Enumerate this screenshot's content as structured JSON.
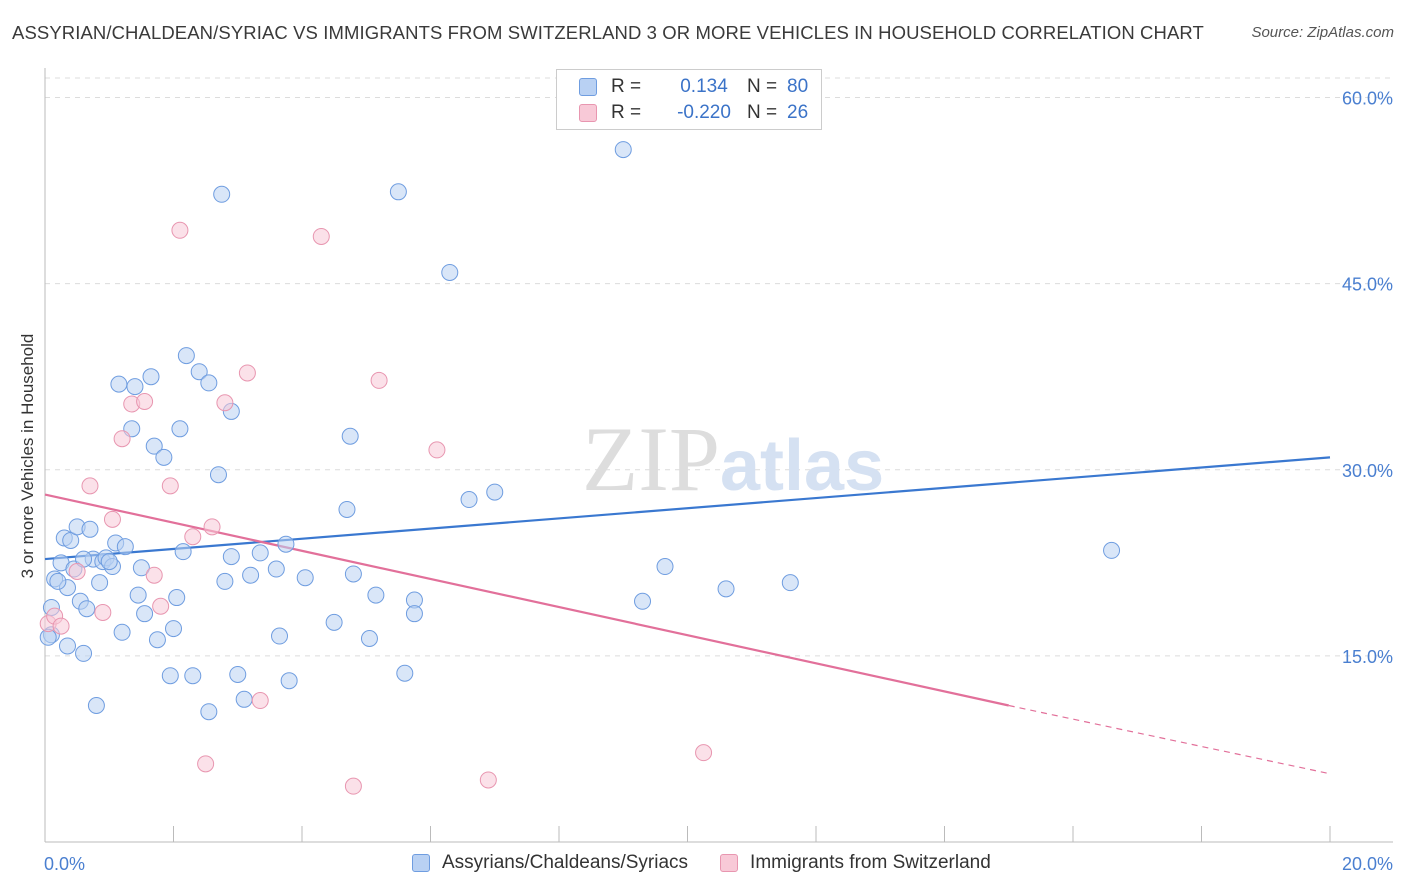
{
  "header": {
    "title": "ASSYRIAN/CHALDEAN/SYRIAC VS IMMIGRANTS FROM SWITZERLAND 3 OR MORE VEHICLES IN HOUSEHOLD CORRELATION CHART",
    "source": "Source: ZipAtlas.com"
  },
  "watermark": {
    "zip": "ZIP",
    "atlas": "atlas"
  },
  "legend": {
    "rows": [
      {
        "r_label": "R =",
        "r_value": "0.134",
        "n_label": "N =",
        "n_value": "80"
      },
      {
        "r_label": "R =",
        "r_value": "-0.220",
        "n_label": "N =",
        "n_value": "26"
      }
    ]
  },
  "colors": {
    "blue": "#3a78d0",
    "blue_fill": "#b9d1f3",
    "pink": "#e2709a",
    "pink_fill": "#f8c9d7",
    "grid": "#dddddd"
  },
  "chart_data": {
    "type": "scatter",
    "title": "ASSYRIAN/CHALDEAN/SYRIAC VS IMMIGRANTS FROM SWITZERLAND 3 OR MORE VEHICLES IN HOUSEHOLD CORRELATION CHART",
    "xlabel": "",
    "ylabel": "3 or more Vehicles in Household",
    "xlim": [
      0,
      20
    ],
    "ylim": [
      0,
      60
    ],
    "x_tick_labels": [
      "0.0%",
      "20.0%"
    ],
    "y_tick_labels": [
      "15.0%",
      "30.0%",
      "45.0%",
      "60.0%"
    ],
    "y_tick_values": [
      15,
      30,
      45,
      60
    ],
    "grid": true,
    "series": [
      {
        "name": "Assyrians/Chaldeans/Syriacs",
        "r": 0.134,
        "n": 80,
        "trend": {
          "x": [
            0,
            20
          ],
          "y": [
            22.8,
            31.0
          ]
        },
        "points": [
          [
            0.1,
            16.7
          ],
          [
            0.1,
            18.9
          ],
          [
            0.15,
            21.2
          ],
          [
            0.25,
            22.5
          ],
          [
            0.3,
            24.5
          ],
          [
            0.35,
            20.5
          ],
          [
            0.35,
            15.8
          ],
          [
            0.4,
            24.3
          ],
          [
            0.45,
            22.0
          ],
          [
            0.5,
            25.4
          ],
          [
            0.55,
            19.4
          ],
          [
            0.6,
            15.2
          ],
          [
            0.65,
            18.8
          ],
          [
            0.7,
            25.2
          ],
          [
            0.75,
            22.8
          ],
          [
            0.85,
            20.9
          ],
          [
            0.9,
            22.6
          ],
          [
            0.95,
            22.9
          ],
          [
            1.05,
            22.2
          ],
          [
            1.1,
            24.1
          ],
          [
            1.15,
            36.9
          ],
          [
            1.2,
            16.9
          ],
          [
            1.25,
            23.8
          ],
          [
            1.35,
            33.3
          ],
          [
            1.4,
            36.7
          ],
          [
            1.45,
            19.9
          ],
          [
            1.55,
            18.4
          ],
          [
            1.65,
            37.5
          ],
          [
            1.7,
            31.9
          ],
          [
            1.75,
            16.3
          ],
          [
            1.85,
            31.0
          ],
          [
            1.95,
            13.4
          ],
          [
            2.0,
            17.2
          ],
          [
            2.05,
            19.7
          ],
          [
            2.1,
            33.3
          ],
          [
            2.15,
            23.4
          ],
          [
            2.2,
            39.2
          ],
          [
            2.3,
            13.4
          ],
          [
            2.4,
            37.9
          ],
          [
            2.55,
            37.0
          ],
          [
            2.55,
            10.5
          ],
          [
            2.7,
            29.6
          ],
          [
            2.75,
            52.2
          ],
          [
            2.8,
            21.0
          ],
          [
            2.9,
            34.7
          ],
          [
            3.0,
            13.5
          ],
          [
            3.1,
            11.5
          ],
          [
            3.2,
            21.5
          ],
          [
            3.35,
            23.3
          ],
          [
            3.6,
            22.0
          ],
          [
            3.65,
            16.6
          ],
          [
            3.75,
            24.0
          ],
          [
            3.8,
            13.0
          ],
          [
            4.05,
            21.3
          ],
          [
            4.5,
            17.7
          ],
          [
            4.7,
            26.8
          ],
          [
            4.75,
            32.7
          ],
          [
            4.8,
            21.6
          ],
          [
            5.05,
            16.4
          ],
          [
            5.15,
            19.9
          ],
          [
            5.5,
            52.4
          ],
          [
            5.6,
            13.6
          ],
          [
            5.75,
            19.5
          ],
          [
            5.75,
            18.4
          ],
          [
            6.3,
            45.9
          ],
          [
            6.6,
            27.6
          ],
          [
            7.0,
            28.2
          ],
          [
            9.0,
            55.8
          ],
          [
            9.3,
            19.4
          ],
          [
            9.65,
            22.2
          ],
          [
            10.6,
            20.4
          ],
          [
            11.6,
            20.9
          ],
          [
            16.6,
            23.5
          ],
          [
            0.8,
            11.0
          ],
          [
            0.05,
            16.5
          ],
          [
            1.5,
            22.1
          ],
          [
            0.2,
            21.0
          ],
          [
            1.0,
            22.6
          ],
          [
            0.6,
            22.8
          ],
          [
            2.9,
            23.0
          ]
        ]
      },
      {
        "name": "Immigrants from Switzerland",
        "r": -0.22,
        "n": 26,
        "trend": {
          "x": [
            0,
            15.0
          ],
          "y": [
            28.0,
            11.0
          ]
        },
        "trend_dashed": {
          "x": [
            15.0,
            20
          ],
          "y": [
            11.0,
            5.5
          ]
        },
        "points": [
          [
            0.05,
            17.6
          ],
          [
            0.15,
            18.2
          ],
          [
            0.25,
            17.4
          ],
          [
            0.5,
            21.8
          ],
          [
            0.7,
            28.7
          ],
          [
            0.9,
            18.5
          ],
          [
            1.05,
            26.0
          ],
          [
            1.2,
            32.5
          ],
          [
            1.35,
            35.3
          ],
          [
            1.55,
            35.5
          ],
          [
            1.7,
            21.5
          ],
          [
            1.8,
            19.0
          ],
          [
            1.95,
            28.7
          ],
          [
            2.1,
            49.3
          ],
          [
            2.3,
            24.6
          ],
          [
            2.5,
            6.3
          ],
          [
            2.6,
            25.4
          ],
          [
            2.8,
            35.4
          ],
          [
            3.15,
            37.8
          ],
          [
            3.35,
            11.4
          ],
          [
            4.3,
            48.8
          ],
          [
            4.8,
            4.5
          ],
          [
            5.2,
            37.2
          ],
          [
            6.1,
            31.6
          ],
          [
            6.9,
            5.0
          ],
          [
            10.25,
            7.2
          ]
        ]
      }
    ]
  },
  "bottom_legend": {
    "items": [
      {
        "label": "Assyrians/Chaldeans/Syriacs"
      },
      {
        "label": "Immigrants from Switzerland"
      }
    ]
  }
}
